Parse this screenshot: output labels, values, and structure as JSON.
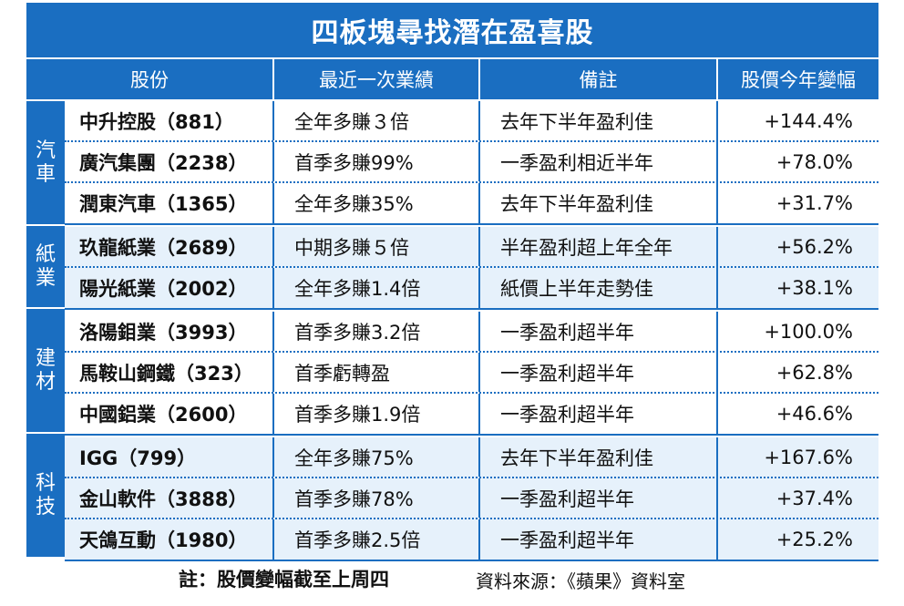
{
  "title": "四板塊尋找潛在盈喜股",
  "headers": [
    "股份",
    "最近一次業績",
    "備註",
    "股價今年變幅"
  ],
  "groups": [
    {
      "sector": [
        "汽",
        "車"
      ],
      "rows": [
        {
          "stock": "中升控股（881）",
          "result": "全年多賺３倍",
          "note": "去年下半年盈利佳",
          "change": "+144.4%"
        },
        {
          "stock": "廣汽集團（2238）",
          "result": "首季多賺99%",
          "note": "一季盈利相近半年",
          "change": "+78.0%"
        },
        {
          "stock": "潤東汽車（1365）",
          "result": "全年多賺35%",
          "note": "去年下半年盈利佳",
          "change": "+31.7%"
        }
      ]
    },
    {
      "sector": [
        "紙",
        "業"
      ],
      "rows": [
        {
          "stock": "玖龍紙業（2689）",
          "result": "中期多賺５倍",
          "note": "半年盈利超上年全年",
          "change": "+56.2%"
        },
        {
          "stock": "陽光紙業（2002）",
          "result": "全年多賺1.4倍",
          "note": "紙價上半年走勢佳",
          "change": "+38.1%"
        }
      ]
    },
    {
      "sector": [
        "建",
        "材"
      ],
      "rows": [
        {
          "stock": "洛陽鉬業（3993）",
          "result": "首季多賺3.2倍",
          "note": "一季盈利超半年",
          "change": "+100.0%"
        },
        {
          "stock": "馬鞍山鋼鐵（323）",
          "result": "首季虧轉盈",
          "note": "一季盈利超半年",
          "change": "+62.8%"
        },
        {
          "stock": "中國鋁業（2600）",
          "result": "首季多賺1.9倍",
          "note": "一季盈利超半年",
          "change": "+46.6%"
        }
      ]
    },
    {
      "sector": [
        "科",
        "技"
      ],
      "rows": [
        {
          "stock": "IGG（799）",
          "result": "全年多賺75%",
          "note": "去年下半年盈利佳",
          "change": "+167.6%"
        },
        {
          "stock": "金山軟件（3888）",
          "result": "首季多賺78%",
          "note": "一季盈利超半年",
          "change": "+37.4%"
        },
        {
          "stock": "天鴿互動（1980）",
          "result": "首季多賺2.5倍",
          "note": "一季盈利超半年",
          "change": "+25.2%"
        }
      ]
    }
  ],
  "footnote": "註：股價變幅截至上周四",
  "source": "資料來源：《蘋果》資料室",
  "colors": {
    "accent": "#1a6ec1",
    "shade": "#e6f1fb"
  }
}
